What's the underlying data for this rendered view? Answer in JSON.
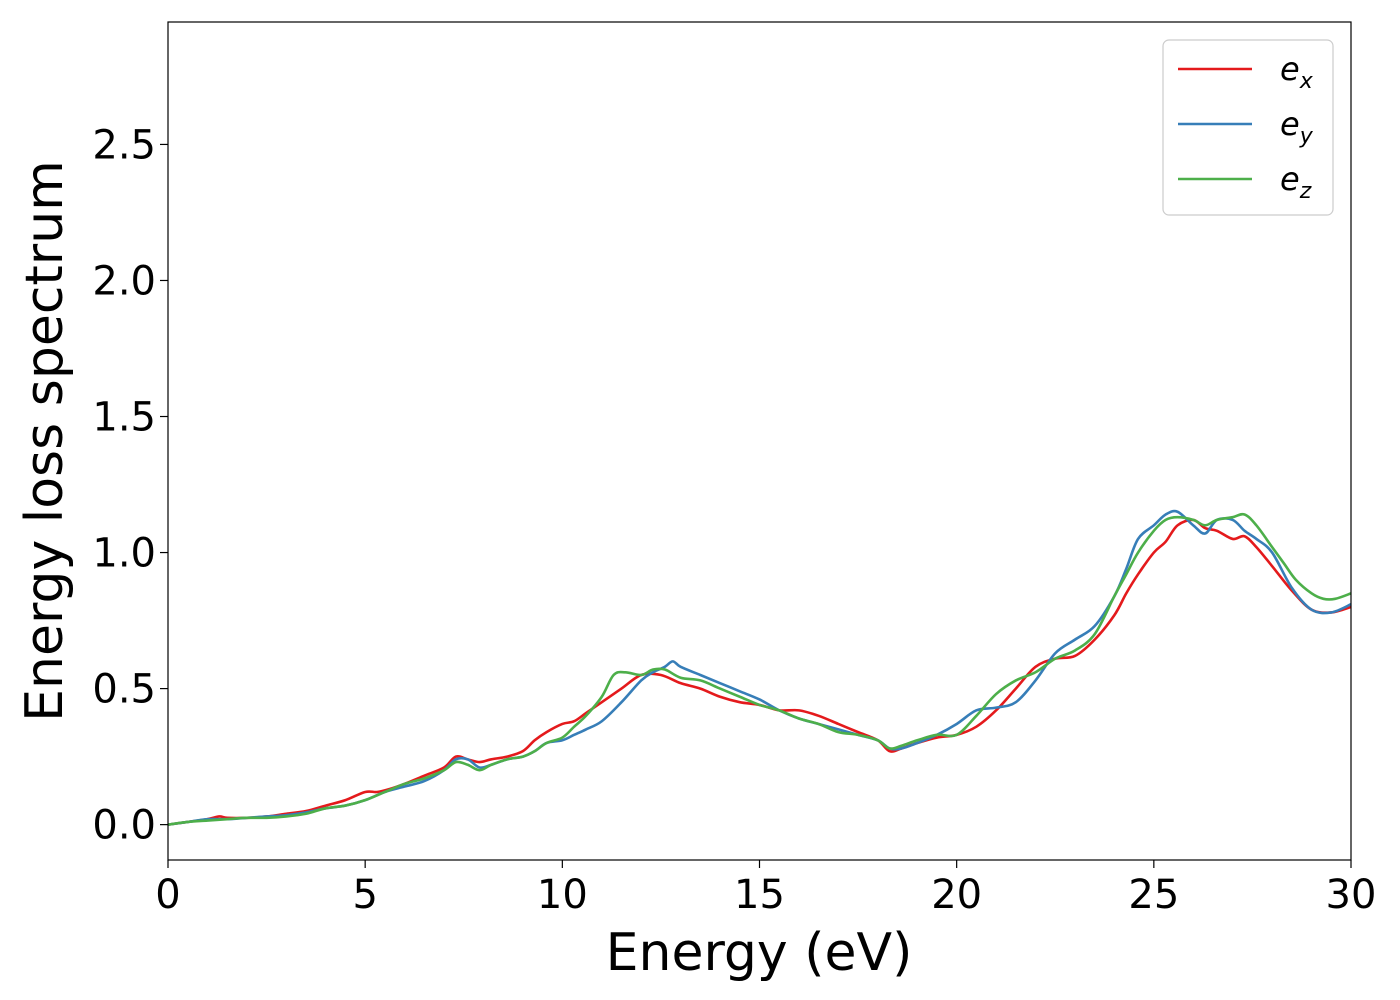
{
  "chart_data": {
    "type": "line",
    "title": "",
    "xlabel": "Energy (eV)",
    "ylabel": "Energy loss spectrum",
    "xlim": [
      0,
      30
    ],
    "ylim": [
      -0.13,
      2.95
    ],
    "xticks": [
      0,
      5,
      10,
      15,
      20,
      25,
      30
    ],
    "xtick_labels": [
      "0",
      "5",
      "10",
      "15",
      "20",
      "25",
      "30"
    ],
    "yticks": [
      0.0,
      0.5,
      1.0,
      1.5,
      2.0,
      2.5
    ],
    "ytick_labels": [
      "0.0",
      "0.5",
      "1.0",
      "1.5",
      "2.0",
      "2.5"
    ],
    "grid": false,
    "legend_position": "top-right",
    "series": [
      {
        "name": "e_x",
        "legend_main": "e",
        "legend_sub": "x",
        "color": "#e41a1c",
        "x": [
          0,
          0.5,
          1,
          1.3,
          1.5,
          2,
          2.5,
          3,
          3.5,
          4,
          4.5,
          5,
          5.3,
          5.6,
          6,
          6.5,
          7,
          7.3,
          7.6,
          7.9,
          8.2,
          8.6,
          9,
          9.3,
          9.6,
          10,
          10.3,
          10.6,
          11,
          11.5,
          12,
          12.5,
          13,
          13.5,
          14,
          14.5,
          15,
          15.5,
          16,
          16.5,
          17,
          17.5,
          18,
          18.3,
          18.6,
          19,
          19.5,
          20,
          20.5,
          21,
          21.5,
          22,
          22.5,
          23,
          23.5,
          24,
          24.3,
          24.6,
          25,
          25.3,
          25.6,
          26,
          26.3,
          26.6,
          27,
          27.3,
          27.6,
          28,
          28.5,
          29,
          29.5,
          30
        ],
        "y": [
          0.0,
          0.01,
          0.02,
          0.03,
          0.025,
          0.025,
          0.03,
          0.04,
          0.05,
          0.07,
          0.09,
          0.12,
          0.12,
          0.13,
          0.15,
          0.18,
          0.21,
          0.25,
          0.24,
          0.23,
          0.24,
          0.25,
          0.27,
          0.31,
          0.34,
          0.37,
          0.38,
          0.41,
          0.45,
          0.5,
          0.55,
          0.55,
          0.52,
          0.5,
          0.47,
          0.45,
          0.44,
          0.42,
          0.42,
          0.4,
          0.37,
          0.34,
          0.31,
          0.27,
          0.28,
          0.3,
          0.32,
          0.33,
          0.36,
          0.42,
          0.5,
          0.58,
          0.61,
          0.62,
          0.68,
          0.77,
          0.85,
          0.92,
          1.0,
          1.04,
          1.1,
          1.12,
          1.09,
          1.08,
          1.05,
          1.06,
          1.02,
          0.95,
          0.86,
          0.79,
          0.78,
          0.8
        ]
      },
      {
        "name": "e_y",
        "legend_main": "e",
        "legend_sub": "y",
        "color": "#377eb8",
        "x": [
          0,
          0.5,
          1,
          1.5,
          2,
          2.5,
          3,
          3.5,
          4,
          4.5,
          5,
          5.5,
          6,
          6.5,
          7,
          7.3,
          7.6,
          7.9,
          8.2,
          8.6,
          9,
          9.3,
          9.6,
          10,
          10.3,
          10.6,
          11,
          11.5,
          12,
          12.3,
          12.6,
          12.8,
          13,
          13.5,
          14,
          14.5,
          15,
          15.5,
          16,
          16.5,
          17,
          17.5,
          18,
          18.3,
          18.6,
          19,
          19.5,
          20,
          20.5,
          21,
          21.5,
          22,
          22.5,
          23,
          23.5,
          24,
          24.3,
          24.6,
          25,
          25.3,
          25.6,
          26,
          26.3,
          26.6,
          27,
          27.3,
          27.6,
          28,
          28.5,
          29,
          29.5,
          30
        ],
        "y": [
          0.0,
          0.01,
          0.02,
          0.02,
          0.025,
          0.03,
          0.035,
          0.045,
          0.06,
          0.07,
          0.09,
          0.12,
          0.14,
          0.16,
          0.2,
          0.24,
          0.24,
          0.21,
          0.22,
          0.24,
          0.25,
          0.27,
          0.3,
          0.31,
          0.33,
          0.35,
          0.38,
          0.45,
          0.53,
          0.56,
          0.58,
          0.6,
          0.58,
          0.55,
          0.52,
          0.49,
          0.46,
          0.42,
          0.39,
          0.37,
          0.35,
          0.33,
          0.31,
          0.28,
          0.28,
          0.3,
          0.33,
          0.37,
          0.42,
          0.43,
          0.45,
          0.53,
          0.63,
          0.68,
          0.73,
          0.84,
          0.94,
          1.05,
          1.1,
          1.14,
          1.15,
          1.1,
          1.07,
          1.12,
          1.12,
          1.08,
          1.05,
          1.0,
          0.87,
          0.79,
          0.78,
          0.81
        ]
      },
      {
        "name": "e_z",
        "legend_main": "e",
        "legend_sub": "z",
        "color": "#4daf4a",
        "x": [
          0,
          0.5,
          1,
          1.5,
          2,
          2.5,
          3,
          3.5,
          4,
          4.5,
          5,
          5.5,
          6,
          6.5,
          7,
          7.3,
          7.6,
          7.9,
          8.2,
          8.6,
          9,
          9.3,
          9.6,
          10,
          10.3,
          10.6,
          11,
          11.3,
          11.6,
          12,
          12.3,
          12.6,
          13,
          13.5,
          14,
          14.5,
          15,
          15.5,
          16,
          16.5,
          17,
          17.5,
          18,
          18.3,
          18.6,
          19,
          19.5,
          20,
          20.5,
          21,
          21.5,
          22,
          22.5,
          23,
          23.5,
          24,
          24.3,
          24.6,
          25,
          25.3,
          25.6,
          26,
          26.3,
          26.6,
          27,
          27.3,
          27.6,
          28,
          28.3,
          28.6,
          29,
          29.3,
          29.6,
          30
        ],
        "y": [
          0.0,
          0.01,
          0.015,
          0.02,
          0.025,
          0.025,
          0.03,
          0.04,
          0.06,
          0.07,
          0.09,
          0.12,
          0.15,
          0.17,
          0.2,
          0.23,
          0.22,
          0.2,
          0.22,
          0.24,
          0.25,
          0.27,
          0.3,
          0.32,
          0.36,
          0.4,
          0.47,
          0.55,
          0.56,
          0.55,
          0.57,
          0.57,
          0.54,
          0.53,
          0.5,
          0.47,
          0.44,
          0.42,
          0.39,
          0.37,
          0.34,
          0.33,
          0.31,
          0.28,
          0.29,
          0.31,
          0.33,
          0.33,
          0.4,
          0.48,
          0.53,
          0.56,
          0.61,
          0.64,
          0.7,
          0.84,
          0.92,
          1.0,
          1.08,
          1.12,
          1.13,
          1.12,
          1.1,
          1.12,
          1.13,
          1.14,
          1.1,
          1.02,
          0.96,
          0.9,
          0.85,
          0.83,
          0.83,
          0.85
        ]
      }
    ]
  }
}
